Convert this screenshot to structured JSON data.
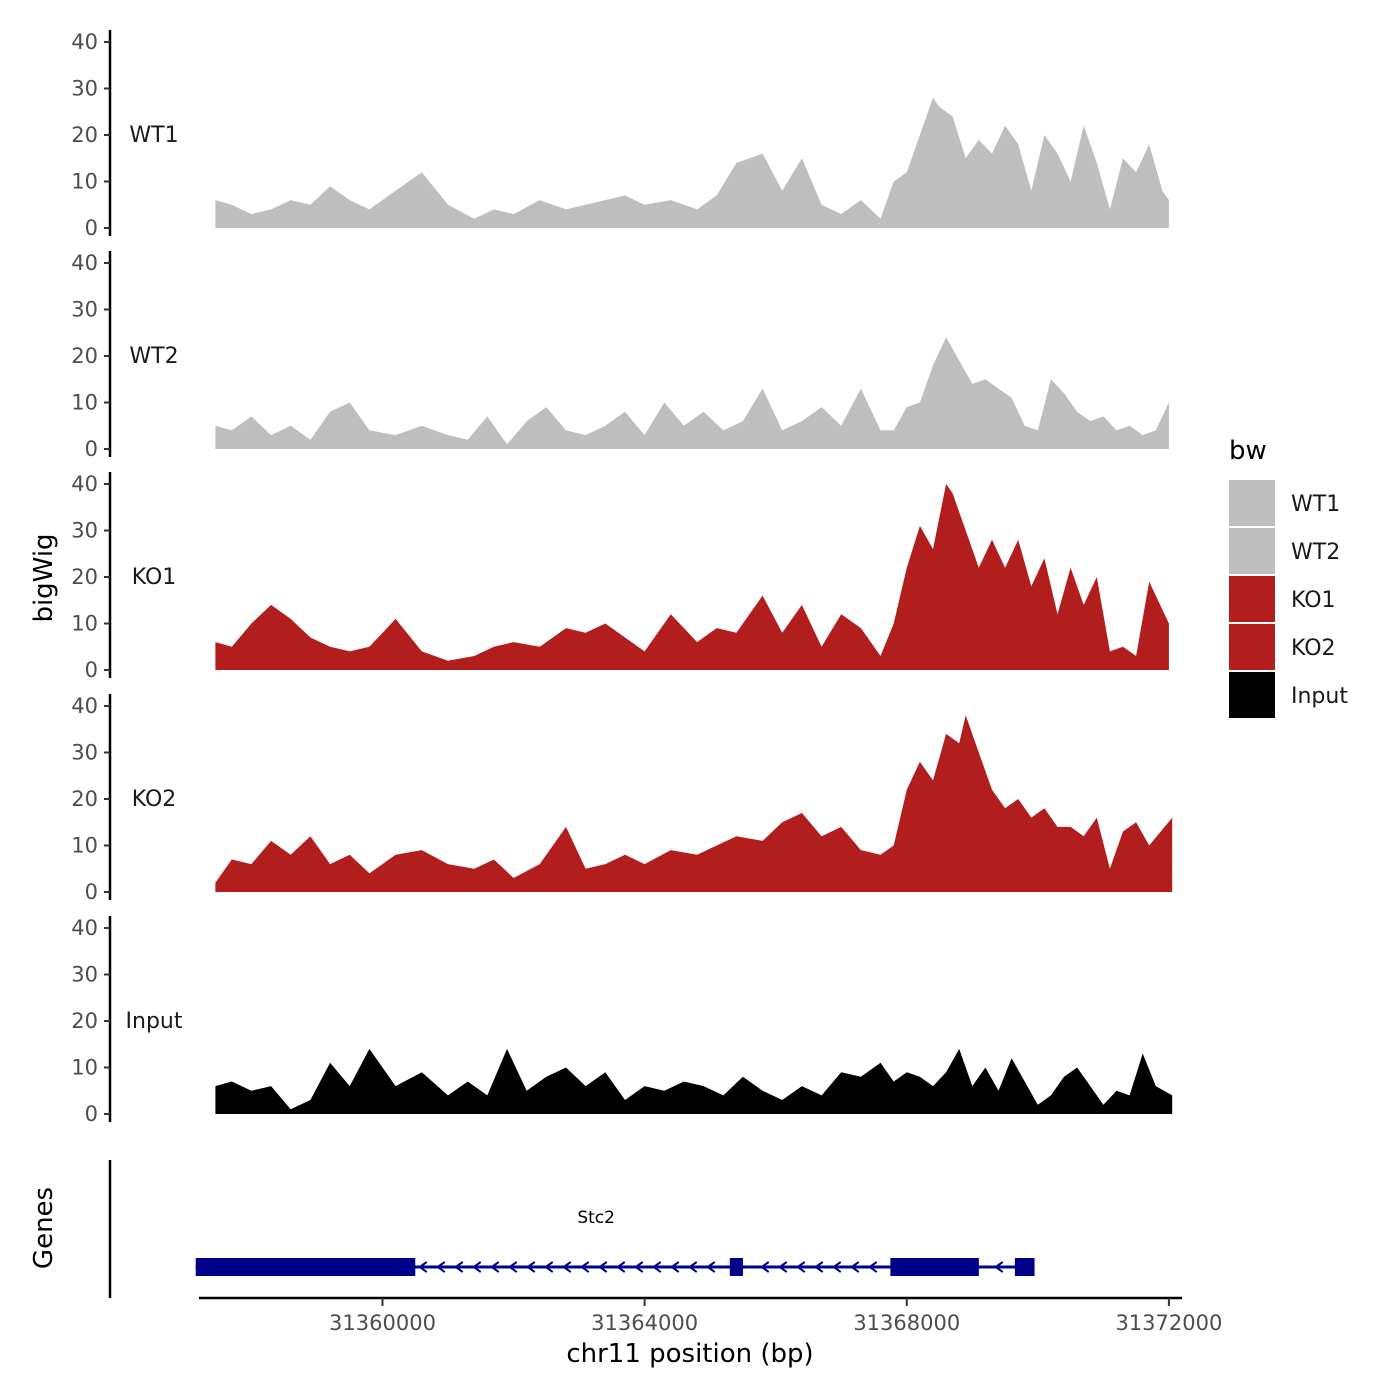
{
  "chart_data": {
    "type": "area",
    "title": "",
    "xlabel": "chr11 position (bp)",
    "ylabel": "bigWig",
    "gene_panel_label": "Genes",
    "x_range": [
      31357200,
      31372200
    ],
    "x_ticks": [
      31360000,
      31364000,
      31368000,
      31372000
    ],
    "x_tick_labels": [
      "31360000",
      "31364000",
      "31368000",
      "31372000"
    ],
    "ylim": [
      0,
      42
    ],
    "y_ticks": [
      0,
      10,
      20,
      30,
      40
    ],
    "y_tick_labels": [
      "0",
      "10",
      "20",
      "30",
      "40"
    ],
    "legend": {
      "title": "bw",
      "position": "right",
      "entries": [
        {
          "label": "WT1",
          "color": "#bebebe"
        },
        {
          "label": "WT2",
          "color": "#bebebe"
        },
        {
          "label": "KO1",
          "color": "#b21e1e"
        },
        {
          "label": "KO2",
          "color": "#b21e1e"
        },
        {
          "label": "Input",
          "color": "#000000"
        }
      ]
    },
    "series": [
      {
        "name": "WT1",
        "color": "#bebebe",
        "x": [
          31357450,
          31357700,
          31358000,
          31358300,
          31358600,
          31358900,
          31359200,
          31359500,
          31359800,
          31360200,
          31360600,
          31361000,
          31361400,
          31361700,
          31362000,
          31362400,
          31362800,
          31363100,
          31363400,
          31363700,
          31364000,
          31364400,
          31364800,
          31365100,
          31365400,
          31365800,
          31366100,
          31366400,
          31366700,
          31367000,
          31367300,
          31367600,
          31367800,
          31368000,
          31368200,
          31368400,
          31368500,
          31368700,
          31368900,
          31369100,
          31369300,
          31369500,
          31369700,
          31369900,
          31370100,
          31370300,
          31370500,
          31370700,
          31370900,
          31371100,
          31371300,
          31371500,
          31371700,
          31371900,
          31372000
        ],
        "values": [
          6,
          5,
          3,
          4,
          6,
          5,
          9,
          6,
          4,
          8,
          12,
          5,
          2,
          4,
          3,
          6,
          4,
          5,
          6,
          7,
          5,
          6,
          4,
          7,
          14,
          16,
          8,
          15,
          5,
          3,
          6,
          2,
          10,
          12,
          20,
          28,
          26,
          24,
          15,
          19,
          16,
          22,
          18,
          8,
          20,
          16,
          10,
          22,
          14,
          4,
          15,
          12,
          18,
          8,
          6
        ]
      },
      {
        "name": "WT2",
        "color": "#bebebe",
        "x": [
          31357450,
          31357700,
          31358000,
          31358300,
          31358600,
          31358900,
          31359200,
          31359500,
          31359800,
          31360200,
          31360600,
          31361000,
          31361300,
          31361600,
          31361900,
          31362200,
          31362500,
          31362800,
          31363100,
          31363400,
          31363700,
          31364000,
          31364300,
          31364600,
          31364900,
          31365200,
          31365500,
          31365800,
          31366100,
          31366400,
          31366700,
          31367000,
          31367300,
          31367600,
          31367800,
          31368000,
          31368200,
          31368400,
          31368600,
          31368800,
          31369000,
          31369200,
          31369400,
          31369600,
          31369800,
          31370000,
          31370200,
          31370400,
          31370600,
          31370800,
          31371000,
          31371200,
          31371400,
          31371600,
          31371800,
          31372000
        ],
        "values": [
          5,
          4,
          7,
          3,
          5,
          2,
          8,
          10,
          4,
          3,
          5,
          3,
          2,
          7,
          1,
          6,
          9,
          4,
          3,
          5,
          8,
          3,
          10,
          5,
          8,
          4,
          6,
          13,
          4,
          6,
          9,
          5,
          13,
          4,
          4,
          9,
          10,
          18,
          24,
          19,
          14,
          15,
          13,
          11,
          5,
          4,
          15,
          12,
          8,
          6,
          7,
          4,
          5,
          3,
          4,
          10
        ]
      },
      {
        "name": "KO1",
        "color": "#b21e1e",
        "x": [
          31357450,
          31357700,
          31358000,
          31358300,
          31358600,
          31358900,
          31359200,
          31359500,
          31359800,
          31360200,
          31360600,
          31361000,
          31361400,
          31361700,
          31362000,
          31362400,
          31362800,
          31363100,
          31363400,
          31363700,
          31364000,
          31364400,
          31364800,
          31365100,
          31365400,
          31365800,
          31366100,
          31366400,
          31366700,
          31367000,
          31367300,
          31367600,
          31367800,
          31368000,
          31368200,
          31368400,
          31368600,
          31368700,
          31368900,
          31369100,
          31369300,
          31369500,
          31369700,
          31369900,
          31370100,
          31370300,
          31370500,
          31370700,
          31370900,
          31371100,
          31371300,
          31371500,
          31371700,
          31372000
        ],
        "values": [
          6,
          5,
          10,
          14,
          11,
          7,
          5,
          4,
          5,
          11,
          4,
          2,
          3,
          5,
          6,
          5,
          9,
          8,
          10,
          7,
          4,
          12,
          6,
          9,
          8,
          16,
          8,
          14,
          5,
          12,
          9,
          3,
          10,
          22,
          31,
          26,
          40,
          38,
          30,
          22,
          28,
          22,
          28,
          18,
          24,
          12,
          22,
          14,
          20,
          4,
          5,
          3,
          19,
          10
        ]
      },
      {
        "name": "KO2",
        "color": "#b21e1e",
        "x": [
          31357450,
          31357700,
          31358000,
          31358300,
          31358600,
          31358900,
          31359200,
          31359500,
          31359800,
          31360200,
          31360600,
          31361000,
          31361400,
          31361700,
          31362000,
          31362400,
          31362800,
          31363100,
          31363400,
          31363700,
          31364000,
          31364400,
          31364800,
          31365100,
          31365400,
          31365800,
          31366100,
          31366400,
          31366700,
          31367000,
          31367300,
          31367600,
          31367800,
          31368000,
          31368200,
          31368400,
          31368600,
          31368800,
          31368900,
          31369100,
          31369300,
          31369500,
          31369700,
          31369900,
          31370100,
          31370300,
          31370500,
          31370700,
          31370900,
          31371100,
          31371300,
          31371500,
          31371700,
          31372050
        ],
        "values": [
          2,
          7,
          6,
          11,
          8,
          12,
          6,
          8,
          4,
          8,
          9,
          6,
          5,
          7,
          3,
          6,
          14,
          5,
          6,
          8,
          6,
          9,
          8,
          10,
          12,
          11,
          15,
          17,
          12,
          14,
          9,
          8,
          10,
          22,
          28,
          24,
          34,
          32,
          38,
          30,
          22,
          18,
          20,
          16,
          18,
          14,
          14,
          12,
          16,
          5,
          13,
          15,
          10,
          16
        ]
      },
      {
        "name": "Input",
        "color": "#000000",
        "x": [
          31357450,
          31357700,
          31358000,
          31358300,
          31358600,
          31358900,
          31359200,
          31359500,
          31359800,
          31360200,
          31360600,
          31361000,
          31361300,
          31361600,
          31361900,
          31362200,
          31362500,
          31362800,
          31363100,
          31363400,
          31363700,
          31364000,
          31364300,
          31364600,
          31364900,
          31365200,
          31365500,
          31365800,
          31366100,
          31366400,
          31366700,
          31367000,
          31367300,
          31367600,
          31367800,
          31368000,
          31368200,
          31368400,
          31368600,
          31368800,
          31369000,
          31369200,
          31369400,
          31369600,
          31369800,
          31370000,
          31370200,
          31370400,
          31370600,
          31370800,
          31371000,
          31371200,
          31371400,
          31371600,
          31371800,
          31372050
        ],
        "values": [
          6,
          7,
          5,
          6,
          1,
          3,
          11,
          6,
          14,
          6,
          9,
          4,
          7,
          4,
          14,
          5,
          8,
          10,
          6,
          9,
          3,
          6,
          5,
          7,
          6,
          4,
          8,
          5,
          3,
          6,
          4,
          9,
          8,
          11,
          7,
          9,
          8,
          6,
          9,
          14,
          6,
          10,
          5,
          12,
          7,
          2,
          4,
          8,
          10,
          6,
          2,
          5,
          4,
          13,
          6,
          4
        ]
      }
    ],
    "genes": [
      {
        "name": "Stc2",
        "strand": "-",
        "color": "#00008b",
        "start": 31357150,
        "end": 31369950,
        "exons": [
          [
            31357150,
            31360500
          ],
          [
            31365300,
            31365500
          ],
          [
            31367750,
            31369100
          ],
          [
            31369650,
            31369950
          ]
        ]
      }
    ]
  }
}
